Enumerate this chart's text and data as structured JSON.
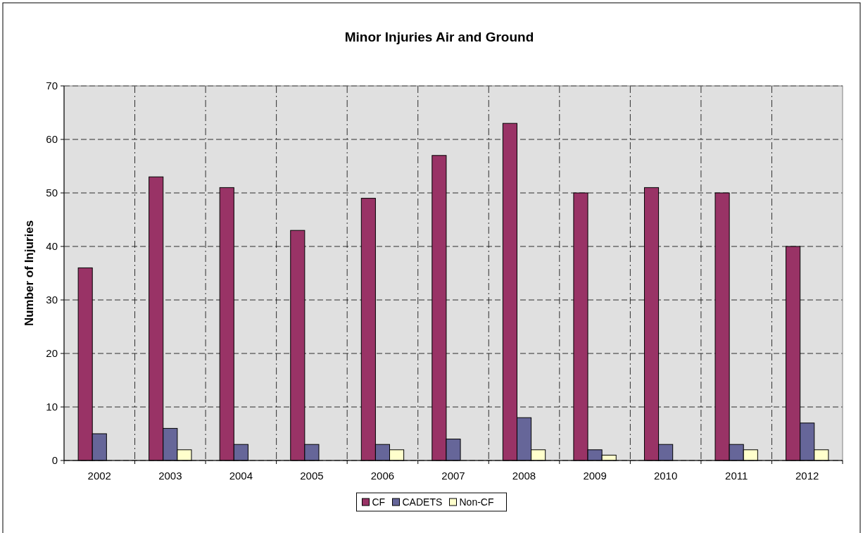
{
  "chart_data": {
    "type": "bar",
    "title": "Minor Injuries Air and Ground",
    "ylabel": "Number of Injuries",
    "categories": [
      "2002",
      "2003",
      "2004",
      "2005",
      "2006",
      "2007",
      "2008",
      "2009",
      "2010",
      "2011",
      "2012"
    ],
    "series": [
      {
        "name": "CF",
        "color": "#993366",
        "values": [
          36,
          53,
          51,
          43,
          49,
          57,
          63,
          50,
          51,
          50,
          40
        ]
      },
      {
        "name": "CADETS",
        "color": "#666699",
        "values": [
          5,
          6,
          3,
          3,
          3,
          4,
          8,
          2,
          3,
          3,
          7
        ]
      },
      {
        "name": "Non-CF",
        "color": "#ffffcc",
        "values": [
          null,
          2,
          null,
          null,
          2,
          null,
          2,
          1,
          null,
          2,
          2
        ]
      }
    ],
    "ylim": [
      0,
      70
    ],
    "yticks": [
      0,
      10,
      20,
      30,
      40,
      50,
      60,
      70
    ],
    "grid": true,
    "legend": "bottom"
  }
}
